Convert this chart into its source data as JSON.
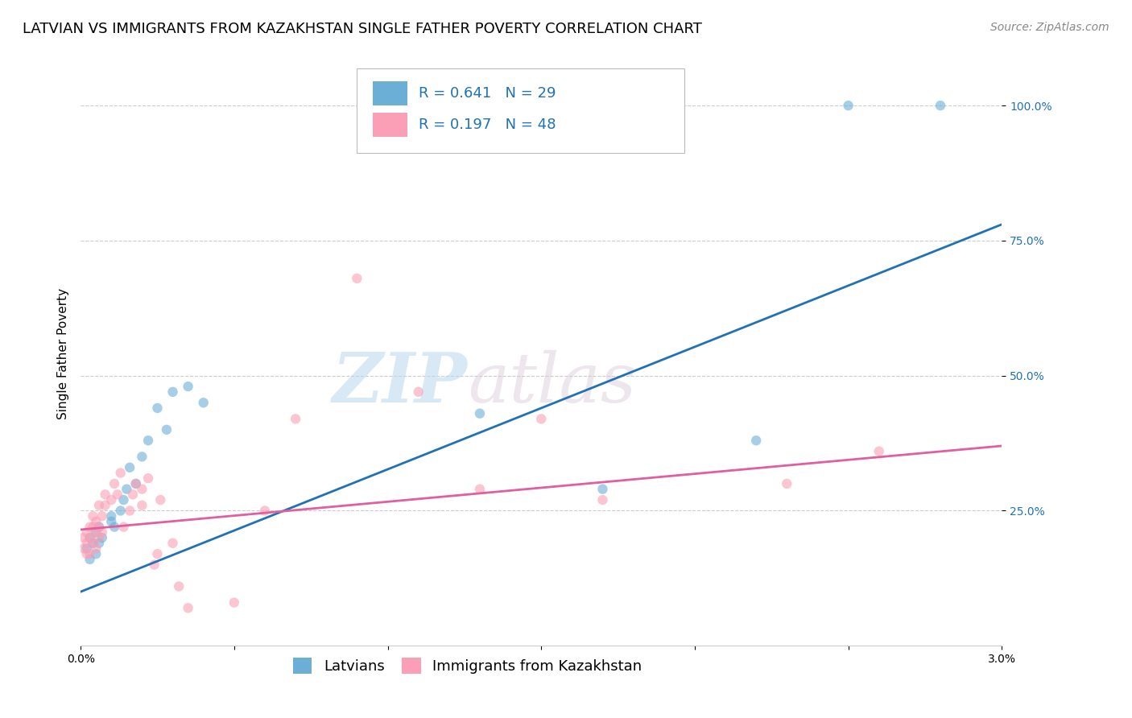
{
  "title": "LATVIAN VS IMMIGRANTS FROM KAZAKHSTAN SINGLE FATHER POVERTY CORRELATION CHART",
  "source": "Source: ZipAtlas.com",
  "ylabel": "Single Father Poverty",
  "xlim": [
    0.0,
    0.03
  ],
  "ylim": [
    0.0,
    1.08
  ],
  "xticks": [
    0.0,
    0.005,
    0.01,
    0.015,
    0.02,
    0.025,
    0.03
  ],
  "xticklabels": [
    "0.0%",
    "",
    "",
    "",
    "",
    "",
    "3.0%"
  ],
  "ytick_positions": [
    0.25,
    0.5,
    0.75,
    1.0
  ],
  "yticklabels": [
    "25.0%",
    "50.0%",
    "75.0%",
    "100.0%"
  ],
  "blue_color": "#6baed6",
  "pink_color": "#fa9fb5",
  "blue_line_color": "#2171b5",
  "pink_line_color": "#e05fa0",
  "legend_label_blue": "Latvians",
  "legend_label_pink": "Immigrants from Kazakhstan",
  "watermark_zip": "ZIP",
  "watermark_atlas": "atlas",
  "blue_scatter_x": [
    0.0002,
    0.0003,
    0.0003,
    0.0004,
    0.0005,
    0.0005,
    0.0006,
    0.0006,
    0.0007,
    0.001,
    0.001,
    0.0011,
    0.0013,
    0.0014,
    0.0015,
    0.0016,
    0.0018,
    0.002,
    0.0022,
    0.0025,
    0.0028,
    0.003,
    0.0035,
    0.004,
    0.013,
    0.017,
    0.022,
    0.025,
    0.028
  ],
  "blue_scatter_y": [
    0.18,
    0.16,
    0.2,
    0.19,
    0.17,
    0.21,
    0.22,
    0.19,
    0.2,
    0.23,
    0.24,
    0.22,
    0.25,
    0.27,
    0.29,
    0.33,
    0.3,
    0.35,
    0.38,
    0.44,
    0.4,
    0.47,
    0.48,
    0.45,
    0.43,
    0.29,
    0.38,
    1.0,
    1.0
  ],
  "pink_scatter_x": [
    0.0001,
    0.0001,
    0.0002,
    0.0002,
    0.0002,
    0.0003,
    0.0003,
    0.0003,
    0.0004,
    0.0004,
    0.0004,
    0.0005,
    0.0005,
    0.0005,
    0.0006,
    0.0006,
    0.0006,
    0.0007,
    0.0007,
    0.0008,
    0.0008,
    0.001,
    0.0011,
    0.0012,
    0.0013,
    0.0014,
    0.0016,
    0.0017,
    0.0018,
    0.002,
    0.002,
    0.0022,
    0.0024,
    0.0025,
    0.0026,
    0.003,
    0.0032,
    0.0035,
    0.005,
    0.006,
    0.007,
    0.009,
    0.011,
    0.013,
    0.015,
    0.017,
    0.023,
    0.026
  ],
  "pink_scatter_y": [
    0.2,
    0.18,
    0.17,
    0.19,
    0.21,
    0.17,
    0.2,
    0.22,
    0.19,
    0.22,
    0.24,
    0.18,
    0.21,
    0.23,
    0.2,
    0.22,
    0.26,
    0.21,
    0.24,
    0.26,
    0.28,
    0.27,
    0.3,
    0.28,
    0.32,
    0.22,
    0.25,
    0.28,
    0.3,
    0.26,
    0.29,
    0.31,
    0.15,
    0.17,
    0.27,
    0.19,
    0.11,
    0.07,
    0.08,
    0.25,
    0.42,
    0.68,
    0.47,
    0.29,
    0.42,
    0.27,
    0.3,
    0.36
  ],
  "blue_line_x": [
    0.0,
    0.03
  ],
  "blue_line_y": [
    0.1,
    0.78
  ],
  "pink_line_x": [
    0.0,
    0.03
  ],
  "pink_line_y": [
    0.215,
    0.37
  ],
  "title_fontsize": 13,
  "axis_label_fontsize": 11,
  "tick_fontsize": 10,
  "legend_fontsize": 13,
  "source_fontsize": 10,
  "background_color": "#ffffff",
  "grid_color": "#cccccc",
  "marker_size": 80,
  "marker_alpha": 0.6,
  "line_width": 2.0
}
